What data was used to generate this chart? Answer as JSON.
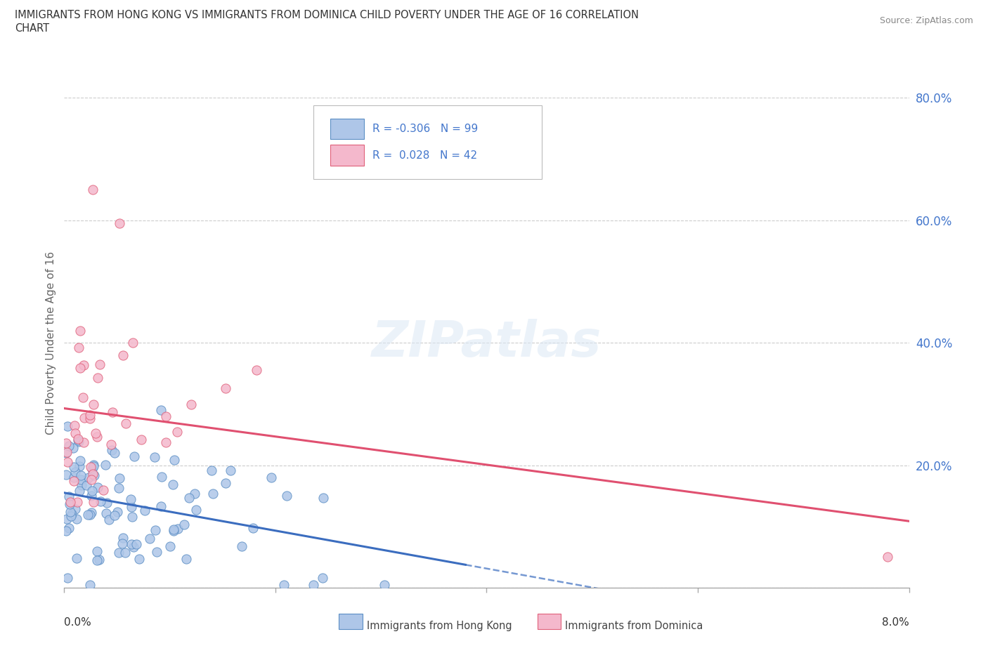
{
  "title_line1": "IMMIGRANTS FROM HONG KONG VS IMMIGRANTS FROM DOMINICA CHILD POVERTY UNDER THE AGE OF 16 CORRELATION",
  "title_line2": "CHART",
  "source": "Source: ZipAtlas.com",
  "ylabel": "Child Poverty Under the Age of 16",
  "xmin": 0.0,
  "xmax": 8.0,
  "ymin": 0.0,
  "ymax": 80.0,
  "hk_R": -0.306,
  "hk_N": 99,
  "dom_R": 0.028,
  "dom_N": 42,
  "hk_color": "#aec6e8",
  "dom_color": "#f4b8cc",
  "hk_edge_color": "#5b8ec4",
  "dom_edge_color": "#e0607a",
  "hk_line_color": "#3b6dbf",
  "dom_line_color": "#e05070",
  "legend_label_hk": "Immigrants from Hong Kong",
  "legend_label_dom": "Immigrants from Dominica",
  "watermark": "ZIPatlas",
  "background_color": "#ffffff",
  "grid_color": "#cccccc",
  "ytick_color": "#4477cc",
  "title_color": "#333333",
  "ylabel_color": "#666666"
}
